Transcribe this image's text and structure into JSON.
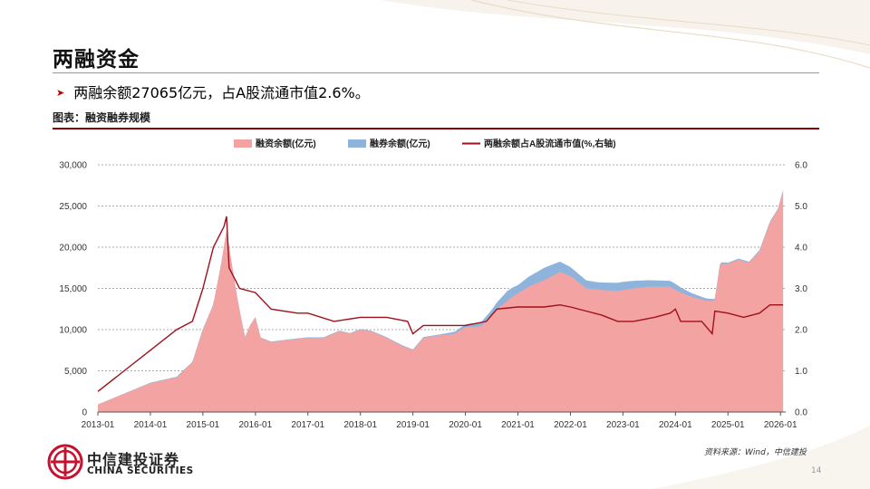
{
  "slide": {
    "title": "两融资金",
    "bullet": "两融余额27065亿元，占A股流通市值2.6%。",
    "caption": "图表：融资融券规模",
    "source": "资料来源：Wind，中信建投",
    "page_number": "14",
    "logo_cn": "中信建投证券",
    "logo_en": "CHINA SECURITIES"
  },
  "colors": {
    "financing": "#f4a3a3",
    "securities_lending": "#8fb4dc",
    "ratio_line": "#a0101a",
    "accent": "#8b0000"
  },
  "chart_data": {
    "type": "area",
    "legend_position": "top",
    "grid": "horizontal dashed",
    "x_tick_labels": [
      "2013-01",
      "2014-01",
      "2015-01",
      "2016-01",
      "2017-01",
      "2018-01",
      "2019-01",
      "2020-01",
      "2021-01",
      "2022-01",
      "2023-01",
      "2024-01",
      "2025-01",
      "2026-01"
    ],
    "x_range": [
      2013.0,
      2026.1
    ],
    "y_left": {
      "ylim": [
        0,
        30000
      ],
      "tick_labels": [
        "0",
        "5,000",
        "10,000",
        "15,000",
        "20,000",
        "25,000",
        "30,000"
      ]
    },
    "y_right": {
      "ylim": [
        0,
        6
      ],
      "tick_labels": [
        "0.0",
        "1.0",
        "2.0",
        "3.0",
        "4.0",
        "5.0",
        "6.0"
      ]
    },
    "series": [
      {
        "name": "融资余额(亿元)",
        "type": "area",
        "axis": "left",
        "points": [
          [
            2013.0,
            900
          ],
          [
            2013.5,
            2200
          ],
          [
            2014.0,
            3500
          ],
          [
            2014.5,
            4200
          ],
          [
            2014.8,
            6000
          ],
          [
            2015.0,
            10000
          ],
          [
            2015.2,
            13000
          ],
          [
            2015.35,
            18000
          ],
          [
            2015.45,
            22000
          ],
          [
            2015.5,
            20000
          ],
          [
            2015.65,
            14000
          ],
          [
            2015.8,
            9000
          ],
          [
            2015.9,
            10500
          ],
          [
            2016.0,
            11500
          ],
          [
            2016.1,
            9000
          ],
          [
            2016.3,
            8500
          ],
          [
            2016.7,
            8800
          ],
          [
            2017.0,
            9000
          ],
          [
            2017.3,
            9000
          ],
          [
            2017.6,
            9800
          ],
          [
            2017.8,
            9500
          ],
          [
            2018.0,
            10000
          ],
          [
            2018.2,
            9800
          ],
          [
            2018.5,
            9000
          ],
          [
            2018.8,
            8000
          ],
          [
            2019.0,
            7500
          ],
          [
            2019.2,
            9000
          ],
          [
            2019.5,
            9300
          ],
          [
            2019.8,
            9500
          ],
          [
            2020.0,
            10300
          ],
          [
            2020.3,
            10400
          ],
          [
            2020.6,
            12500
          ],
          [
            2020.9,
            14000
          ],
          [
            2021.2,
            15200
          ],
          [
            2021.5,
            16000
          ],
          [
            2021.8,
            17000
          ],
          [
            2022.0,
            16500
          ],
          [
            2022.3,
            15000
          ],
          [
            2022.6,
            14800
          ],
          [
            2022.9,
            14700
          ],
          [
            2023.2,
            15000
          ],
          [
            2023.5,
            15200
          ],
          [
            2023.9,
            15200
          ],
          [
            2024.1,
            14500
          ],
          [
            2024.3,
            14000
          ],
          [
            2024.6,
            13500
          ],
          [
            2024.75,
            13500
          ],
          [
            2024.85,
            18000
          ],
          [
            2025.0,
            18000
          ],
          [
            2025.2,
            18500
          ],
          [
            2025.4,
            18100
          ],
          [
            2025.6,
            19500
          ],
          [
            2025.8,
            23000
          ],
          [
            2025.95,
            24500
          ],
          [
            2026.05,
            26800
          ]
        ]
      },
      {
        "name": "融券余额(亿元)",
        "type": "area",
        "axis": "left",
        "stacked": true,
        "points": [
          [
            2013.0,
            20
          ],
          [
            2015.0,
            100
          ],
          [
            2016.0,
            50
          ],
          [
            2018.0,
            80
          ],
          [
            2019.5,
            100
          ],
          [
            2020.5,
            600
          ],
          [
            2020.8,
            1200
          ],
          [
            2021.0,
            1000
          ],
          [
            2021.5,
            1500
          ],
          [
            2022.0,
            1100
          ],
          [
            2022.5,
            900
          ],
          [
            2023.0,
            1000
          ],
          [
            2023.5,
            800
          ],
          [
            2024.0,
            700
          ],
          [
            2024.5,
            300
          ],
          [
            2025.0,
            120
          ],
          [
            2026.05,
            150
          ]
        ]
      },
      {
        "name": "两融余额占A股流通市值(%,右轴)",
        "type": "line",
        "axis": "right",
        "points": [
          [
            2013.0,
            0.5
          ],
          [
            2013.5,
            1.0
          ],
          [
            2014.0,
            1.5
          ],
          [
            2014.5,
            2.0
          ],
          [
            2014.8,
            2.2
          ],
          [
            2015.0,
            3.0
          ],
          [
            2015.2,
            4.0
          ],
          [
            2015.4,
            4.5
          ],
          [
            2015.45,
            4.75
          ],
          [
            2015.5,
            3.5
          ],
          [
            2015.7,
            3.0
          ],
          [
            2016.0,
            2.9
          ],
          [
            2016.3,
            2.5
          ],
          [
            2016.8,
            2.4
          ],
          [
            2017.0,
            2.4
          ],
          [
            2017.5,
            2.2
          ],
          [
            2018.0,
            2.3
          ],
          [
            2018.5,
            2.3
          ],
          [
            2018.9,
            2.2
          ],
          [
            2019.0,
            1.9
          ],
          [
            2019.2,
            2.1
          ],
          [
            2019.6,
            2.1
          ],
          [
            2020.0,
            2.1
          ],
          [
            2020.4,
            2.2
          ],
          [
            2020.6,
            2.5
          ],
          [
            2021.0,
            2.55
          ],
          [
            2021.5,
            2.55
          ],
          [
            2021.8,
            2.6
          ],
          [
            2022.0,
            2.55
          ],
          [
            2022.3,
            2.45
          ],
          [
            2022.6,
            2.35
          ],
          [
            2022.9,
            2.2
          ],
          [
            2023.2,
            2.2
          ],
          [
            2023.6,
            2.3
          ],
          [
            2023.9,
            2.4
          ],
          [
            2024.0,
            2.5
          ],
          [
            2024.1,
            2.2
          ],
          [
            2024.5,
            2.2
          ],
          [
            2024.7,
            1.9
          ],
          [
            2024.75,
            2.45
          ],
          [
            2025.0,
            2.4
          ],
          [
            2025.3,
            2.3
          ],
          [
            2025.6,
            2.4
          ],
          [
            2025.8,
            2.6
          ],
          [
            2026.05,
            2.6
          ]
        ]
      }
    ]
  }
}
